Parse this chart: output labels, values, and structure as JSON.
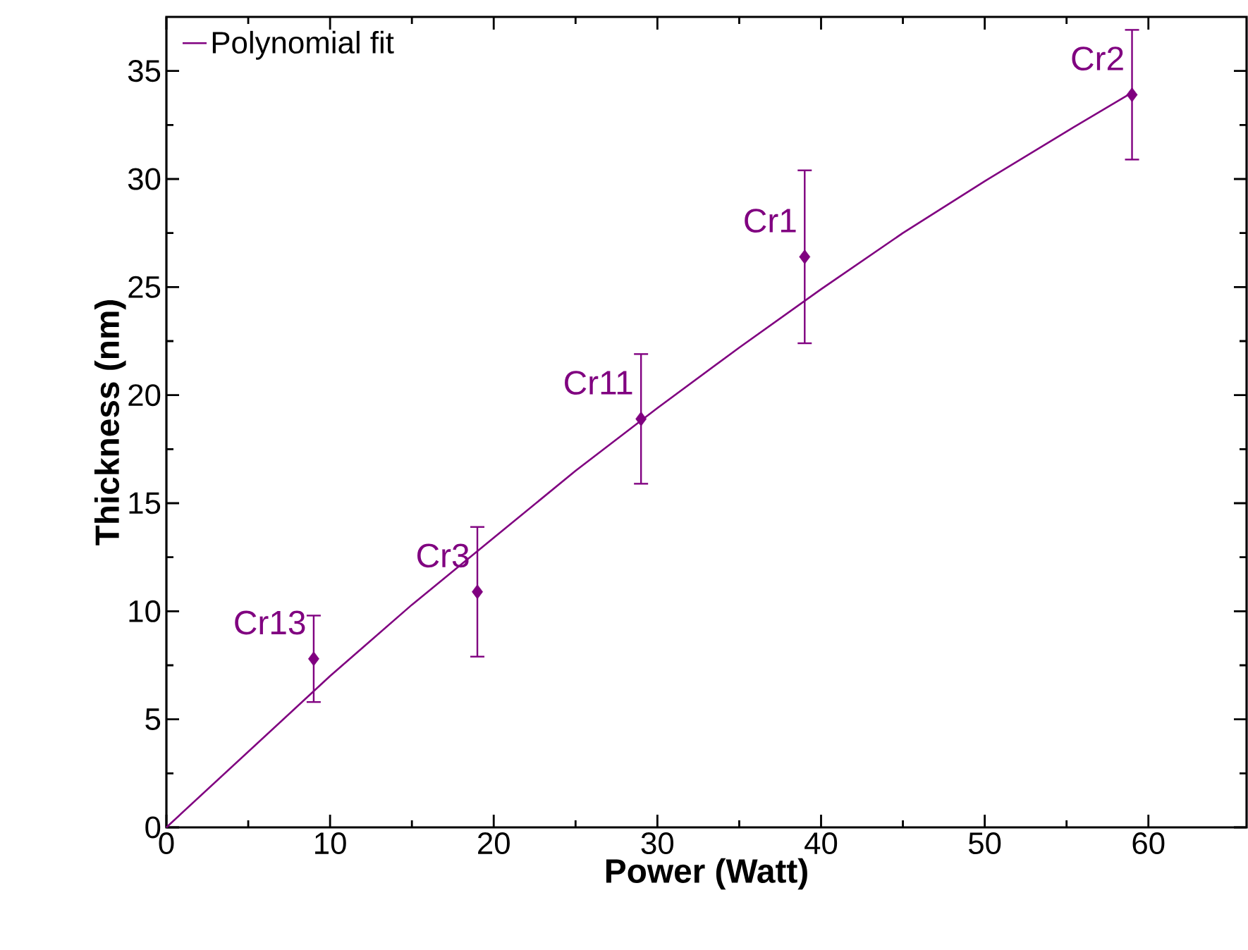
{
  "chart_data": {
    "type": "scatter",
    "xlabel": "Power (Watt)",
    "ylabel": "Thickness (nm)",
    "xlim": [
      0,
      66
    ],
    "ylim": [
      0,
      37.5
    ],
    "xticks": [
      0,
      10,
      20,
      30,
      40,
      50,
      60
    ],
    "yticks": [
      0,
      5,
      10,
      15,
      20,
      25,
      30,
      35
    ],
    "legend": "top left",
    "grid": false,
    "series": [
      {
        "color": "#800080",
        "marker": "diamond",
        "x": [
          9,
          19,
          29,
          39,
          59
        ],
        "values": [
          7.8,
          10.9,
          18.9,
          26.4,
          33.9
        ],
        "errors": [
          2,
          3,
          3,
          4,
          3
        ]
      },
      {
        "type": "line",
        "name": "Polynomial fit",
        "color": "#800080",
        "marker": "none",
        "line_style": "solid",
        "x": [
          0,
          5,
          10,
          15,
          20,
          25,
          30,
          35,
          40,
          45,
          50,
          55,
          59
        ],
        "values": [
          0,
          3.5,
          7.0,
          10.3,
          13.4,
          16.5,
          19.4,
          22.2,
          24.9,
          27.5,
          29.9,
          32.2,
          34.0
        ]
      }
    ],
    "annotations": [
      {
        "text": "Cr13",
        "x": 9,
        "y": 7.8
      },
      {
        "text": "Cr3",
        "x": 19,
        "y": 10.9
      },
      {
        "text": "Cr11",
        "x": 29,
        "y": 18.9
      },
      {
        "text": "Cr1",
        "x": 39,
        "y": 26.4
      },
      {
        "text": "Cr2",
        "x": 59,
        "y": 33.9
      }
    ]
  }
}
